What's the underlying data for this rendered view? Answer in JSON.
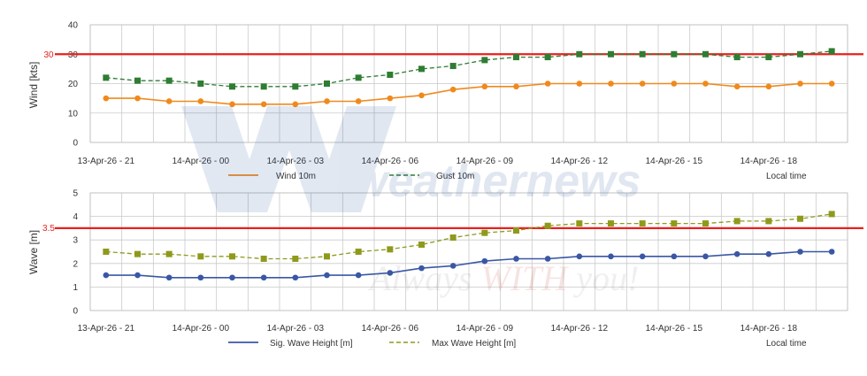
{
  "watermark": {
    "brand": "weathernews",
    "slogan_parts": [
      "Always ",
      "WITH",
      " you!"
    ]
  },
  "chart_data": [
    {
      "type": "line",
      "ylabel": "Wind [kts]",
      "ylim": [
        0,
        40
      ],
      "yticks": [
        0,
        10,
        20,
        30,
        40
      ],
      "grid": true,
      "x_tick_labels": [
        "13-Apr-26 - 21",
        "14-Apr-26 - 00",
        "14-Apr-26 - 03",
        "14-Apr-26 - 06",
        "14-Apr-26 - 09",
        "14-Apr-26 - 12",
        "14-Apr-26 - 15",
        "14-Apr-26 - 18"
      ],
      "threshold": {
        "value": 30,
        "label": "30",
        "color": "#e8201e"
      },
      "series": [
        {
          "name": "Wind 10m",
          "color": "#f0891c",
          "style": "solid",
          "marker": "circle",
          "values": [
            15,
            15,
            14,
            14,
            13,
            13,
            13,
            14,
            14,
            15,
            16,
            18,
            19,
            19,
            20,
            20,
            20,
            20,
            20,
            20,
            19,
            19,
            20,
            20
          ]
        },
        {
          "name": "Gust 10m",
          "color": "#2e7d32",
          "style": "dashed",
          "marker": "square",
          "values": [
            22,
            21,
            21,
            20,
            19,
            19,
            19,
            20,
            22,
            23,
            25,
            26,
            28,
            29,
            29,
            30,
            30,
            30,
            30,
            30,
            29,
            29,
            30,
            31
          ]
        }
      ],
      "legend_extra": "Local time"
    },
    {
      "type": "line",
      "ylabel": "Wave [m]",
      "ylim": [
        0,
        5
      ],
      "yticks": [
        0,
        1,
        2,
        3,
        4,
        5
      ],
      "grid": true,
      "x_tick_labels": [
        "13-Apr-26 - 21",
        "14-Apr-26 - 00",
        "14-Apr-26 - 03",
        "14-Apr-26 - 06",
        "14-Apr-26 - 09",
        "14-Apr-26 - 12",
        "14-Apr-26 - 15",
        "14-Apr-26 - 18"
      ],
      "threshold": {
        "value": 3.5,
        "label": "3.5",
        "color": "#e8201e"
      },
      "series": [
        {
          "name": "Sig. Wave Height [m]",
          "color": "#3a57a5",
          "style": "solid",
          "marker": "circle",
          "values": [
            1.5,
            1.5,
            1.4,
            1.4,
            1.4,
            1.4,
            1.4,
            1.5,
            1.5,
            1.6,
            1.8,
            1.9,
            2.1,
            2.2,
            2.2,
            2.3,
            2.3,
            2.3,
            2.3,
            2.3,
            2.4,
            2.4,
            2.5,
            2.5
          ]
        },
        {
          "name": "Max Wave Height [m]",
          "color": "#8f9a1c",
          "style": "dashed",
          "marker": "square",
          "values": [
            2.5,
            2.4,
            2.4,
            2.3,
            2.3,
            2.2,
            2.2,
            2.3,
            2.5,
            2.6,
            2.8,
            3.1,
            3.3,
            3.4,
            3.6,
            3.7,
            3.7,
            3.7,
            3.7,
            3.7,
            3.8,
            3.8,
            3.9,
            4.1
          ]
        }
      ],
      "legend_extra": "Local time"
    }
  ]
}
